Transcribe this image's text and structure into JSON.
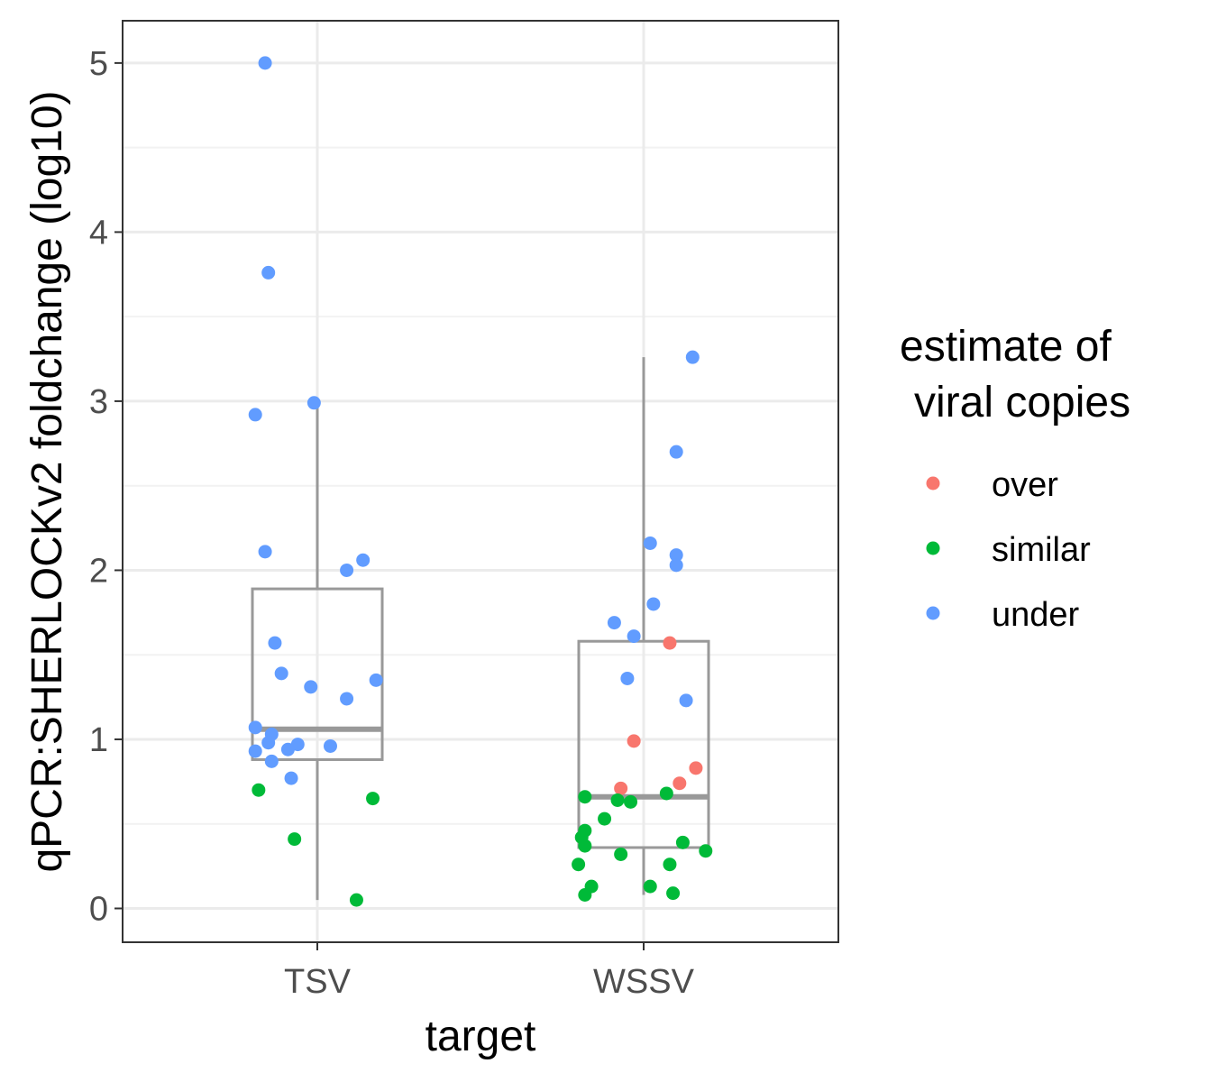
{
  "chart_data": {
    "type": "boxplot",
    "xlabel": "target",
    "ylabel": "qPCR:SHERLOCKv2 foldchange (log10)",
    "categories": [
      "TSV",
      "WSSV"
    ],
    "ylim": [
      -0.2,
      5.25
    ],
    "yticks": [
      "0",
      "1",
      "2",
      "3",
      "4",
      "5"
    ],
    "grid": true,
    "legend": {
      "title_line1": "estimate of",
      "title_line2": "viral copies",
      "placement": "right",
      "entries": [
        {
          "key": "over",
          "label": "over",
          "color": "#F8766D"
        },
        {
          "key": "similar",
          "label": "similar",
          "color": "#00BA38"
        },
        {
          "key": "under",
          "label": "under",
          "color": "#619CFF"
        }
      ]
    },
    "boxes": [
      {
        "category": "TSV",
        "whisker_low": 0.05,
        "q1": 0.88,
        "median": 1.06,
        "q3": 1.89,
        "whisker_high": 3.0
      },
      {
        "category": "WSSV",
        "whisker_low": 0.08,
        "q1": 0.36,
        "median": 0.66,
        "q3": 1.58,
        "whisker_high": 3.26
      }
    ],
    "points": [
      {
        "category": "TSV",
        "jitter": -0.16,
        "y": 5.0,
        "group": "under"
      },
      {
        "category": "TSV",
        "jitter": -0.15,
        "y": 3.76,
        "group": "under"
      },
      {
        "category": "TSV",
        "jitter": -0.01,
        "y": 2.99,
        "group": "under"
      },
      {
        "category": "TSV",
        "jitter": -0.19,
        "y": 2.92,
        "group": "under"
      },
      {
        "category": "TSV",
        "jitter": -0.16,
        "y": 2.11,
        "group": "under"
      },
      {
        "category": "TSV",
        "jitter": 0.14,
        "y": 2.06,
        "group": "under"
      },
      {
        "category": "TSV",
        "jitter": 0.09,
        "y": 2.0,
        "group": "under"
      },
      {
        "category": "TSV",
        "jitter": -0.13,
        "y": 1.57,
        "group": "under"
      },
      {
        "category": "TSV",
        "jitter": -0.11,
        "y": 1.39,
        "group": "under"
      },
      {
        "category": "TSV",
        "jitter": 0.18,
        "y": 1.35,
        "group": "under"
      },
      {
        "category": "TSV",
        "jitter": -0.02,
        "y": 1.31,
        "group": "under"
      },
      {
        "category": "TSV",
        "jitter": 0.09,
        "y": 1.24,
        "group": "under"
      },
      {
        "category": "TSV",
        "jitter": -0.19,
        "y": 1.07,
        "group": "under"
      },
      {
        "category": "TSV",
        "jitter": -0.14,
        "y": 1.03,
        "group": "under"
      },
      {
        "category": "TSV",
        "jitter": -0.15,
        "y": 0.98,
        "group": "under"
      },
      {
        "category": "TSV",
        "jitter": -0.06,
        "y": 0.97,
        "group": "under"
      },
      {
        "category": "TSV",
        "jitter": 0.04,
        "y": 0.96,
        "group": "under"
      },
      {
        "category": "TSV",
        "jitter": -0.09,
        "y": 0.94,
        "group": "under"
      },
      {
        "category": "TSV",
        "jitter": -0.19,
        "y": 0.93,
        "group": "under"
      },
      {
        "category": "TSV",
        "jitter": -0.14,
        "y": 0.87,
        "group": "under"
      },
      {
        "category": "TSV",
        "jitter": -0.08,
        "y": 0.77,
        "group": "under"
      },
      {
        "category": "TSV",
        "jitter": -0.18,
        "y": 0.7,
        "group": "similar"
      },
      {
        "category": "TSV",
        "jitter": 0.17,
        "y": 0.65,
        "group": "similar"
      },
      {
        "category": "TSV",
        "jitter": -0.07,
        "y": 0.41,
        "group": "similar"
      },
      {
        "category": "TSV",
        "jitter": 0.12,
        "y": 0.05,
        "group": "similar"
      },
      {
        "category": "WSSV",
        "jitter": 0.15,
        "y": 3.26,
        "group": "under"
      },
      {
        "category": "WSSV",
        "jitter": 0.1,
        "y": 2.7,
        "group": "under"
      },
      {
        "category": "WSSV",
        "jitter": 0.02,
        "y": 2.16,
        "group": "under"
      },
      {
        "category": "WSSV",
        "jitter": 0.1,
        "y": 2.09,
        "group": "under"
      },
      {
        "category": "WSSV",
        "jitter": 0.1,
        "y": 2.03,
        "group": "under"
      },
      {
        "category": "WSSV",
        "jitter": 0.03,
        "y": 1.8,
        "group": "under"
      },
      {
        "category": "WSSV",
        "jitter": -0.09,
        "y": 1.69,
        "group": "under"
      },
      {
        "category": "WSSV",
        "jitter": -0.03,
        "y": 1.61,
        "group": "under"
      },
      {
        "category": "WSSV",
        "jitter": -0.05,
        "y": 1.36,
        "group": "under"
      },
      {
        "category": "WSSV",
        "jitter": 0.13,
        "y": 1.23,
        "group": "under"
      },
      {
        "category": "WSSV",
        "jitter": 0.08,
        "y": 1.57,
        "group": "over"
      },
      {
        "category": "WSSV",
        "jitter": -0.03,
        "y": 0.99,
        "group": "over"
      },
      {
        "category": "WSSV",
        "jitter": 0.16,
        "y": 0.83,
        "group": "over"
      },
      {
        "category": "WSSV",
        "jitter": 0.11,
        "y": 0.74,
        "group": "over"
      },
      {
        "category": "WSSV",
        "jitter": -0.07,
        "y": 0.71,
        "group": "over"
      },
      {
        "category": "WSSV",
        "jitter": 0.07,
        "y": 0.68,
        "group": "similar"
      },
      {
        "category": "WSSV",
        "jitter": -0.18,
        "y": 0.66,
        "group": "similar"
      },
      {
        "category": "WSSV",
        "jitter": -0.08,
        "y": 0.64,
        "group": "similar"
      },
      {
        "category": "WSSV",
        "jitter": -0.04,
        "y": 0.63,
        "group": "similar"
      },
      {
        "category": "WSSV",
        "jitter": -0.12,
        "y": 0.53,
        "group": "similar"
      },
      {
        "category": "WSSV",
        "jitter": -0.18,
        "y": 0.46,
        "group": "similar"
      },
      {
        "category": "WSSV",
        "jitter": -0.19,
        "y": 0.42,
        "group": "similar"
      },
      {
        "category": "WSSV",
        "jitter": 0.12,
        "y": 0.39,
        "group": "similar"
      },
      {
        "category": "WSSV",
        "jitter": -0.18,
        "y": 0.37,
        "group": "similar"
      },
      {
        "category": "WSSV",
        "jitter": 0.19,
        "y": 0.34,
        "group": "similar"
      },
      {
        "category": "WSSV",
        "jitter": -0.07,
        "y": 0.32,
        "group": "similar"
      },
      {
        "category": "WSSV",
        "jitter": -0.2,
        "y": 0.26,
        "group": "similar"
      },
      {
        "category": "WSSV",
        "jitter": 0.08,
        "y": 0.26,
        "group": "similar"
      },
      {
        "category": "WSSV",
        "jitter": -0.16,
        "y": 0.13,
        "group": "similar"
      },
      {
        "category": "WSSV",
        "jitter": 0.02,
        "y": 0.13,
        "group": "similar"
      },
      {
        "category": "WSSV",
        "jitter": -0.18,
        "y": 0.08,
        "group": "similar"
      },
      {
        "category": "WSSV",
        "jitter": 0.09,
        "y": 0.09,
        "group": "similar"
      }
    ]
  }
}
